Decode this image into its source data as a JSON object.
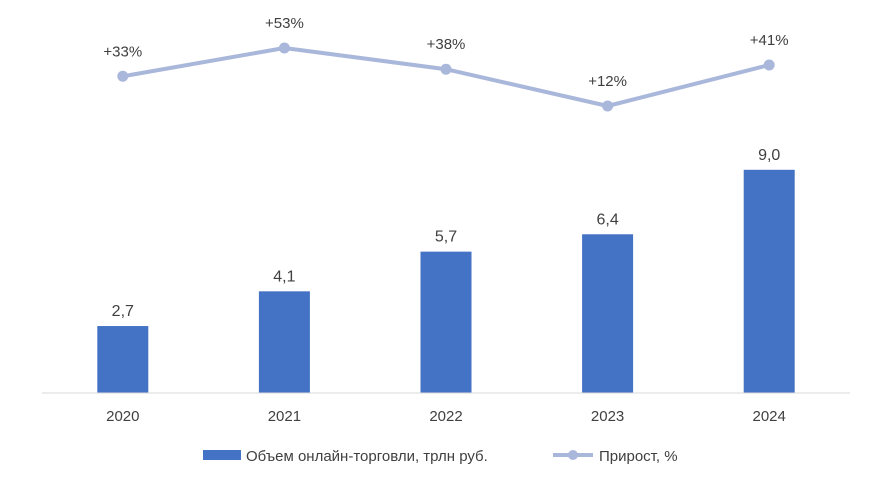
{
  "chart_data": {
    "type": "bar",
    "categories": [
      "2020",
      "2021",
      "2022",
      "2023",
      "2024"
    ],
    "series": [
      {
        "name": "Объем онлайн-торговли, трлн руб.",
        "type": "bar",
        "values": [
          2.7,
          4.1,
          5.7,
          6.4,
          9.0
        ],
        "labels": [
          "2,7",
          "4,1",
          "5,7",
          "6,4",
          "9,0"
        ],
        "color": "#4472C4"
      },
      {
        "name": "Прирост, %",
        "type": "line",
        "values": [
          33,
          53,
          38,
          12,
          41
        ],
        "labels": [
          "+33%",
          "+53%",
          "+38%",
          "+12%",
          "+41%"
        ],
        "color": "#A9B7DB"
      }
    ],
    "title": "",
    "xlabel": "",
    "ylabel": "",
    "ylim": [
      0,
      10
    ],
    "grid": false,
    "legend_position": "bottom"
  }
}
